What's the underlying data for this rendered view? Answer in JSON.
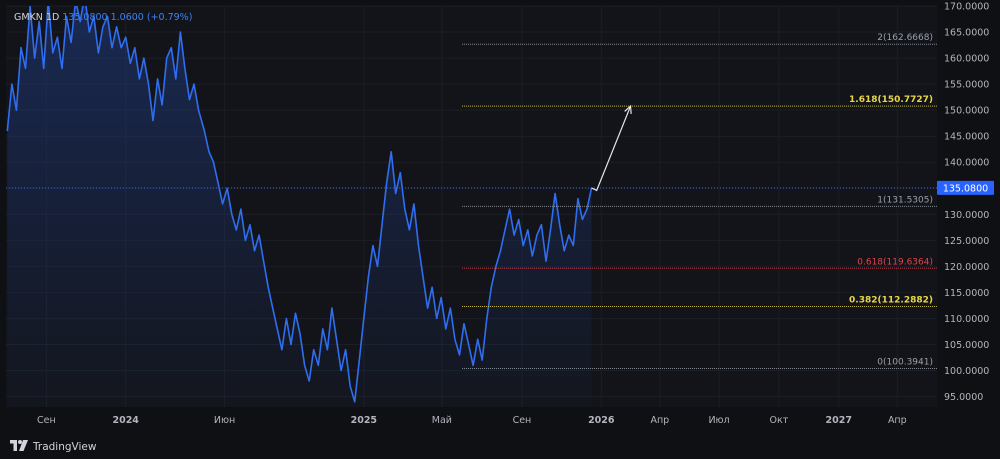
{
  "legend": {
    "symbol": "GMKN",
    "interval": "1D",
    "price": "135.0800",
    "change": "1.0600",
    "change_pct": "(+0.79%)"
  },
  "branding": {
    "logo_icon": "tradingview-logo-icon",
    "name": "TradingView"
  },
  "colors": {
    "background": "#131419",
    "line": "#2f6ef0",
    "fill_top": "#1f3b82",
    "price_badge": "#2962ff",
    "fib_white": "#9aa0aa",
    "fib_yellow": "#e8d64b",
    "fib_red": "#e0434b"
  },
  "chart_data": {
    "type": "area",
    "title": "",
    "xlabel": "",
    "ylabel": "",
    "ylim": [
      93,
      170
    ],
    "yticks": [
      "95.0000",
      "100.0000",
      "105.0000",
      "110.0000",
      "115.0000",
      "120.0000",
      "125.0000",
      "130.0000",
      "135.0000",
      "140.0000",
      "145.0000",
      "150.0000",
      "155.0000",
      "160.0000",
      "165.0000",
      "170.0000"
    ],
    "xticks": [
      {
        "label": "Сен",
        "date": "2023-09-01",
        "bold": false
      },
      {
        "label": "2024",
        "date": "2024-01-01",
        "bold": true
      },
      {
        "label": "Июн",
        "date": "2024-06-01",
        "bold": false
      },
      {
        "label": "2025",
        "date": "2025-01-01",
        "bold": true
      },
      {
        "label": "Май",
        "date": "2025-05-01",
        "bold": false
      },
      {
        "label": "Сен",
        "date": "2025-09-01",
        "bold": false
      },
      {
        "label": "2026",
        "date": "2026-01-01",
        "bold": true
      },
      {
        "label": "Апр",
        "date": "2026-04-01",
        "bold": false
      },
      {
        "label": "Июл",
        "date": "2026-07-01",
        "bold": false
      },
      {
        "label": "Окт",
        "date": "2026-10-01",
        "bold": false
      },
      {
        "label": "2027",
        "date": "2027-01-01",
        "bold": true
      },
      {
        "label": "Апр",
        "date": "2027-04-01",
        "bold": false
      }
    ],
    "series": [
      {
        "points": [
          [
            "2023-07-03",
            146
          ],
          [
            "2023-07-10",
            155
          ],
          [
            "2023-07-17",
            150
          ],
          [
            "2023-07-24",
            162
          ],
          [
            "2023-07-31",
            158
          ],
          [
            "2023-08-07",
            170
          ],
          [
            "2023-08-14",
            160
          ],
          [
            "2023-08-21",
            167
          ],
          [
            "2023-08-28",
            158
          ],
          [
            "2023-09-04",
            171
          ],
          [
            "2023-09-11",
            161
          ],
          [
            "2023-09-18",
            164
          ],
          [
            "2023-09-25",
            158
          ],
          [
            "2023-10-02",
            168
          ],
          [
            "2023-10-09",
            163
          ],
          [
            "2023-10-16",
            171
          ],
          [
            "2023-10-23",
            167
          ],
          [
            "2023-10-30",
            172
          ],
          [
            "2023-11-06",
            165
          ],
          [
            "2023-11-13",
            168
          ],
          [
            "2023-11-20",
            161
          ],
          [
            "2023-11-27",
            166
          ],
          [
            "2023-12-04",
            168
          ],
          [
            "2023-12-11",
            162
          ],
          [
            "2023-12-18",
            166
          ],
          [
            "2023-12-25",
            162
          ],
          [
            "2024-01-01",
            164
          ],
          [
            "2024-01-08",
            159
          ],
          [
            "2024-01-15",
            162
          ],
          [
            "2024-01-22",
            156
          ],
          [
            "2024-01-29",
            160
          ],
          [
            "2024-02-05",
            155
          ],
          [
            "2024-02-12",
            148
          ],
          [
            "2024-02-19",
            156
          ],
          [
            "2024-02-26",
            151
          ],
          [
            "2024-03-04",
            160
          ],
          [
            "2024-03-11",
            162
          ],
          [
            "2024-03-18",
            156
          ],
          [
            "2024-03-25",
            165
          ],
          [
            "2024-04-01",
            158
          ],
          [
            "2024-04-08",
            152
          ],
          [
            "2024-04-15",
            155
          ],
          [
            "2024-04-22",
            150
          ],
          [
            "2024-05-01",
            146
          ],
          [
            "2024-05-08",
            142
          ],
          [
            "2024-05-15",
            140
          ],
          [
            "2024-05-22",
            136
          ],
          [
            "2024-05-29",
            132
          ],
          [
            "2024-06-05",
            135
          ],
          [
            "2024-06-12",
            130
          ],
          [
            "2024-06-19",
            127
          ],
          [
            "2024-06-26",
            131
          ],
          [
            "2024-07-03",
            125
          ],
          [
            "2024-07-10",
            128
          ],
          [
            "2024-07-17",
            123
          ],
          [
            "2024-07-24",
            126
          ],
          [
            "2024-07-31",
            121
          ],
          [
            "2024-08-07",
            116
          ],
          [
            "2024-08-14",
            112
          ],
          [
            "2024-08-21",
            108
          ],
          [
            "2024-08-28",
            104
          ],
          [
            "2024-09-04",
            110
          ],
          [
            "2024-09-11",
            105
          ],
          [
            "2024-09-18",
            111
          ],
          [
            "2024-09-25",
            107
          ],
          [
            "2024-10-02",
            101
          ],
          [
            "2024-10-09",
            98
          ],
          [
            "2024-10-16",
            104
          ],
          [
            "2024-10-23",
            101
          ],
          [
            "2024-10-30",
            108
          ],
          [
            "2024-11-06",
            104
          ],
          [
            "2024-11-13",
            112
          ],
          [
            "2024-11-20",
            106
          ],
          [
            "2024-11-27",
            100
          ],
          [
            "2024-12-04",
            104
          ],
          [
            "2024-12-11",
            97
          ],
          [
            "2024-12-18",
            94
          ],
          [
            "2024-12-25",
            102
          ],
          [
            "2025-01-01",
            110
          ],
          [
            "2025-01-08",
            118
          ],
          [
            "2025-01-15",
            124
          ],
          [
            "2025-01-22",
            120
          ],
          [
            "2025-01-29",
            128
          ],
          [
            "2025-02-05",
            136
          ],
          [
            "2025-02-12",
            142
          ],
          [
            "2025-02-19",
            134
          ],
          [
            "2025-02-26",
            138
          ],
          [
            "2025-03-05",
            131
          ],
          [
            "2025-03-12",
            127
          ],
          [
            "2025-03-19",
            132
          ],
          [
            "2025-03-26",
            124
          ],
          [
            "2025-04-02",
            118
          ],
          [
            "2025-04-09",
            112
          ],
          [
            "2025-04-16",
            116
          ],
          [
            "2025-04-23",
            110
          ],
          [
            "2025-04-30",
            114
          ],
          [
            "2025-05-07",
            108
          ],
          [
            "2025-05-14",
            112
          ],
          [
            "2025-05-21",
            106
          ],
          [
            "2025-05-28",
            103
          ],
          [
            "2025-06-04",
            109
          ],
          [
            "2025-06-11",
            105
          ],
          [
            "2025-06-18",
            101
          ],
          [
            "2025-06-25",
            106
          ],
          [
            "2025-07-02",
            102
          ],
          [
            "2025-07-09",
            110
          ],
          [
            "2025-07-16",
            116
          ],
          [
            "2025-07-23",
            120
          ],
          [
            "2025-07-30",
            123
          ],
          [
            "2025-08-06",
            127
          ],
          [
            "2025-08-13",
            131
          ],
          [
            "2025-08-20",
            126
          ],
          [
            "2025-08-27",
            129
          ],
          [
            "2025-09-03",
            124
          ],
          [
            "2025-09-10",
            127
          ],
          [
            "2025-09-17",
            122
          ],
          [
            "2025-09-24",
            126
          ],
          [
            "2025-10-01",
            128
          ],
          [
            "2025-10-08",
            121
          ],
          [
            "2025-10-15",
            127
          ],
          [
            "2025-10-22",
            134
          ],
          [
            "2025-10-29",
            128
          ],
          [
            "2025-11-05",
            123
          ],
          [
            "2025-11-12",
            126
          ],
          [
            "2025-11-19",
            124
          ],
          [
            "2025-11-26",
            133
          ],
          [
            "2025-12-03",
            129
          ],
          [
            "2025-12-10",
            131
          ],
          [
            "2025-12-17",
            135.08
          ]
        ]
      }
    ],
    "current_price_label": "135.0800",
    "fib_levels": [
      {
        "label": "2(162.6668)",
        "value": 162.6668,
        "color": "#9aa0aa",
        "bold": false
      },
      {
        "label": "1.618(150.7727)",
        "value": 150.7727,
        "color": "#e8d64b",
        "bold": true
      },
      {
        "label": "1(131.5305)",
        "value": 131.5305,
        "color": "#9aa0aa",
        "bold": false
      },
      {
        "label": "0.618(119.6364)",
        "value": 119.6364,
        "color": "#e0434b",
        "bold": false
      },
      {
        "label": "0.382(112.2882)",
        "value": 112.2882,
        "color": "#e8d64b",
        "bold": true
      },
      {
        "label": "0(100.3941)",
        "value": 100.3941,
        "color": "#9aa0aa",
        "bold": false
      }
    ],
    "fib_start_date": "2025-06-01",
    "projection_arrow": [
      [
        "2025-12-17",
        135.08
      ],
      [
        "2025-12-25",
        134.6
      ],
      [
        "2026-02-15",
        150.8
      ]
    ],
    "grid": true
  }
}
